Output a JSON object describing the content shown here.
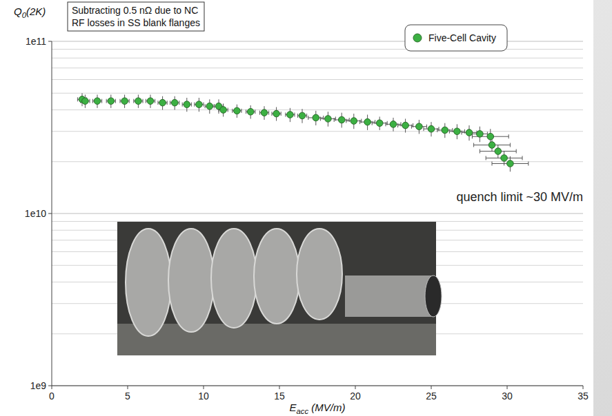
{
  "chart_data": {
    "type": "scatter",
    "x_label": "Eacc (MV/m)",
    "y_label": "Q0(2K)",
    "annotations": [
      "Subtracting 0.5 nΩ due to NC RF losses in SS blank flanges",
      "quench limit ~30 MV/m"
    ],
    "x": [
      2.0,
      2.2,
      3.0,
      3.9,
      4.8,
      5.7,
      6.5,
      7.3,
      8.1,
      8.9,
      9.7,
      10.4,
      11.0,
      11.3,
      12.2,
      13.1,
      14.0,
      14.8,
      15.7,
      16.5,
      17.4,
      18.2,
      19.1,
      19.9,
      20.8,
      21.6,
      22.5,
      23.3,
      24.2,
      25.0,
      25.9,
      26.7,
      27.5,
      28.2,
      28.9,
      29.0,
      29.4,
      29.8,
      30.2
    ],
    "series": [
      {
        "name": "Five-Cell Cavity",
        "color": "#3cb043",
        "marker": "circle",
        "values": [
          46000000000.0,
          45000000000.0,
          45000000000.0,
          45000000000.0,
          45000000000.0,
          45000000000.0,
          45000000000.0,
          44000000000.0,
          44000000000.0,
          43000000000.0,
          43000000000.0,
          42000000000.0,
          42000000000.0,
          40000000000.0,
          39500000000.0,
          39000000000.0,
          38500000000.0,
          38000000000.0,
          37500000000.0,
          37000000000.0,
          36000000000.0,
          35500000000.0,
          35000000000.0,
          34500000000.0,
          34000000000.0,
          33500000000.0,
          33000000000.0,
          32500000000.0,
          32000000000.0,
          31000000000.0,
          30500000000.0,
          30000000000.0,
          29500000000.0,
          29000000000.0,
          28000000000.0,
          25000000000.0,
          23000000000.0,
          21000000000.0,
          19500000000.0
        ],
        "y_errors": [
          4000000000.0,
          4000000000.0,
          4000000000.0,
          4000000000.0,
          4000000000.0,
          4000000000.0,
          4000000000.0,
          4000000000.0,
          4000000000.0,
          4000000000.0,
          4000000000.0,
          4000000000.0,
          4000000000.0,
          3500000000.0,
          3500000000.0,
          3500000000.0,
          3500000000.0,
          3500000000.0,
          3500000000.0,
          3500000000.0,
          3500000000.0,
          3500000000.0,
          3500000000.0,
          3500000000.0,
          3500000000.0,
          3000000000.0,
          3000000000.0,
          3000000000.0,
          3000000000.0,
          3000000000.0,
          3000000000.0,
          3000000000.0,
          3000000000.0,
          3000000000.0,
          3000000000.0,
          2000000000.0,
          2000000000.0,
          2000000000.0,
          2000000000.0
        ],
        "x_errors": [
          0.3,
          0.3,
          0.3,
          0.3,
          0.3,
          0.3,
          0.3,
          0.3,
          0.3,
          0.3,
          0.3,
          0.3,
          0.3,
          0.3,
          0.3,
          0.3,
          0.3,
          0.3,
          0.3,
          0.3,
          0.5,
          0.5,
          0.5,
          0.5,
          0.5,
          0.5,
          0.5,
          0.5,
          0.5,
          0.5,
          0.5,
          0.5,
          0.5,
          0.5,
          1.2,
          1.2,
          1.2,
          1.2,
          1.2
        ]
      }
    ],
    "xlim": [
      0,
      35
    ],
    "xticks": [
      0,
      5,
      10,
      15,
      20,
      25,
      30,
      35
    ],
    "ylim": [
      1000000000.0,
      100000000000.0
    ],
    "yticks": [
      {
        "value": 1000000000.0,
        "label": "1e9"
      },
      {
        "value": 10000000000.0,
        "label": "1e10"
      },
      {
        "value": 100000000000.0,
        "label": "1e11"
      }
    ],
    "log": "y",
    "grid": true,
    "legend": "top-right"
  }
}
